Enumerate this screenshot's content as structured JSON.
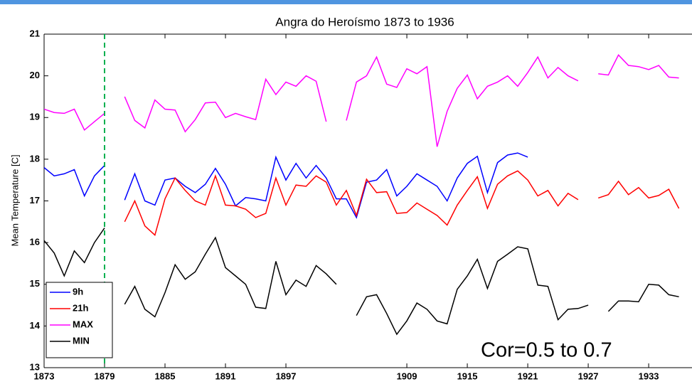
{
  "chart_data": {
    "type": "line",
    "title": "Angra do Heroísmo 1873 to 1936",
    "ylabel": "Mean Temperature [C]",
    "annotation": "Cor=0.5 to 0.7",
    "x": [
      1873,
      1874,
      1875,
      1876,
      1877,
      1878,
      1879,
      1880,
      1881,
      1882,
      1883,
      1884,
      1885,
      1886,
      1887,
      1888,
      1889,
      1890,
      1891,
      1892,
      1893,
      1894,
      1895,
      1896,
      1897,
      1898,
      1899,
      1900,
      1901,
      1902,
      1903,
      1904,
      1905,
      1906,
      1907,
      1908,
      1909,
      1910,
      1911,
      1912,
      1913,
      1914,
      1915,
      1916,
      1917,
      1918,
      1919,
      1920,
      1921,
      1922,
      1923,
      1924,
      1925,
      1926,
      1927,
      1928,
      1929,
      1930,
      1931,
      1932,
      1933,
      1934,
      1935,
      1936
    ],
    "series": [
      {
        "name": "9h",
        "color": "#0000ff",
        "values": [
          17.8,
          17.6,
          17.65,
          17.75,
          17.12,
          17.6,
          17.85,
          null,
          17.02,
          17.65,
          17.0,
          16.9,
          17.5,
          17.55,
          17.35,
          17.2,
          17.4,
          17.78,
          17.4,
          16.88,
          17.08,
          17.05,
          17.0,
          18.05,
          17.5,
          17.9,
          17.55,
          17.85,
          17.55,
          17.05,
          17.05,
          16.6,
          17.45,
          17.5,
          17.75,
          17.12,
          17.35,
          17.65,
          17.5,
          17.35,
          17.0,
          17.55,
          17.9,
          18.07,
          17.2,
          17.92,
          18.1,
          18.15,
          18.05,
          null,
          null,
          null,
          null,
          null,
          null,
          null,
          null,
          null,
          null,
          null,
          null,
          null,
          null,
          null
        ]
      },
      {
        "name": "21h",
        "color": "#ff0000",
        "values": [
          null,
          null,
          null,
          null,
          null,
          null,
          null,
          null,
          16.5,
          17.0,
          16.4,
          16.18,
          17.05,
          17.55,
          17.25,
          17.0,
          16.9,
          17.6,
          16.9,
          16.88,
          16.8,
          16.6,
          16.7,
          17.55,
          16.9,
          17.38,
          17.35,
          17.6,
          17.45,
          16.9,
          17.25,
          16.65,
          17.52,
          17.2,
          17.22,
          16.7,
          16.72,
          16.95,
          16.8,
          16.65,
          16.42,
          16.9,
          17.25,
          17.58,
          16.82,
          17.4,
          17.6,
          17.72,
          17.5,
          17.12,
          17.25,
          16.88,
          17.18,
          17.03,
          null,
          17.07,
          17.15,
          17.47,
          17.15,
          17.32,
          17.07,
          17.13,
          17.28,
          16.82
        ]
      },
      {
        "name": "MAX",
        "color": "#ff00ff",
        "values": [
          19.2,
          19.12,
          19.1,
          19.2,
          18.7,
          18.9,
          19.1,
          null,
          19.5,
          18.93,
          18.75,
          19.42,
          19.2,
          19.18,
          18.66,
          18.95,
          19.35,
          19.37,
          19.0,
          19.1,
          19.02,
          18.95,
          19.92,
          19.55,
          19.85,
          19.75,
          20.0,
          19.87,
          18.9,
          null,
          18.93,
          19.85,
          20.0,
          20.45,
          19.8,
          19.72,
          20.17,
          20.05,
          20.22,
          18.3,
          19.15,
          19.7,
          20.02,
          19.45,
          19.75,
          19.85,
          20.0,
          19.75,
          20.08,
          20.45,
          19.95,
          20.2,
          20.0,
          19.88,
          null,
          20.05,
          20.02,
          20.5,
          20.25,
          20.22,
          20.15,
          20.25,
          19.97,
          19.95
        ]
      },
      {
        "name": "MIN",
        "color": "#000000",
        "values": [
          16.05,
          15.75,
          15.2,
          15.8,
          15.52,
          16.0,
          16.35,
          null,
          14.52,
          14.95,
          14.4,
          14.22,
          14.8,
          15.47,
          15.12,
          15.3,
          15.72,
          16.12,
          15.4,
          15.2,
          15.0,
          14.45,
          14.42,
          15.55,
          14.75,
          15.1,
          14.95,
          15.45,
          15.25,
          15.0,
          null,
          14.25,
          14.7,
          14.75,
          14.3,
          13.8,
          14.12,
          14.55,
          14.4,
          14.12,
          14.05,
          14.88,
          15.2,
          15.6,
          14.9,
          15.55,
          15.72,
          15.9,
          15.85,
          14.98,
          14.95,
          14.15,
          14.4,
          14.42,
          14.5,
          null,
          14.35,
          14.6,
          14.6,
          14.58,
          15.0,
          14.98,
          14.75,
          14.7
        ]
      }
    ],
    "vline": {
      "x": 1879,
      "color": "#00b050",
      "style": "dashed"
    },
    "xlim": [
      1873,
      1937.3
    ],
    "xticks": [
      1873,
      1879,
      1885,
      1891,
      1897,
      1909,
      1915,
      1921,
      1927,
      1933
    ],
    "ylim": [
      13,
      21
    ],
    "yticks": [
      13,
      14,
      15,
      16,
      17,
      18,
      19,
      20,
      21
    ],
    "grid": false,
    "legend": "lower left"
  }
}
